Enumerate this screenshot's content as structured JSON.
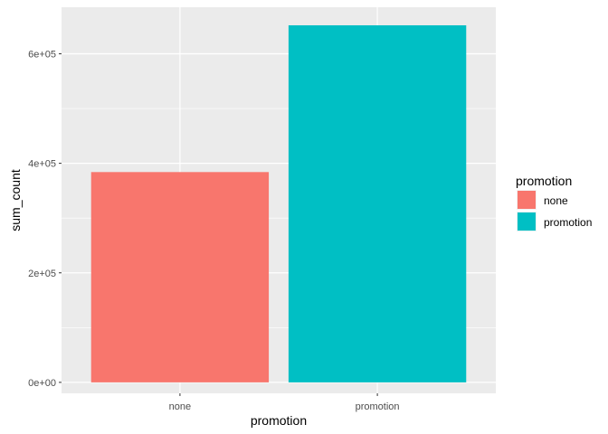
{
  "chart_data": {
    "type": "bar",
    "categories": [
      "none",
      "promotion"
    ],
    "values": [
      384000,
      652000
    ],
    "colors": [
      "#F8766D",
      "#00BFC4"
    ],
    "xlabel": "promotion",
    "ylabel": "sum_count",
    "ylim": [
      -20000,
      685000
    ],
    "yticks": [
      0,
      200000,
      400000,
      600000
    ],
    "ytick_labels": [
      "0e+00",
      "2e+05",
      "4e+05",
      "6e+05"
    ],
    "grid": true,
    "panel_background": "#EBEBEB",
    "legend": {
      "title": "promotion",
      "placement": "right",
      "entries": [
        {
          "label": "none",
          "color": "#F8766D"
        },
        {
          "label": "promotion",
          "color": "#00BFC4"
        }
      ]
    }
  }
}
